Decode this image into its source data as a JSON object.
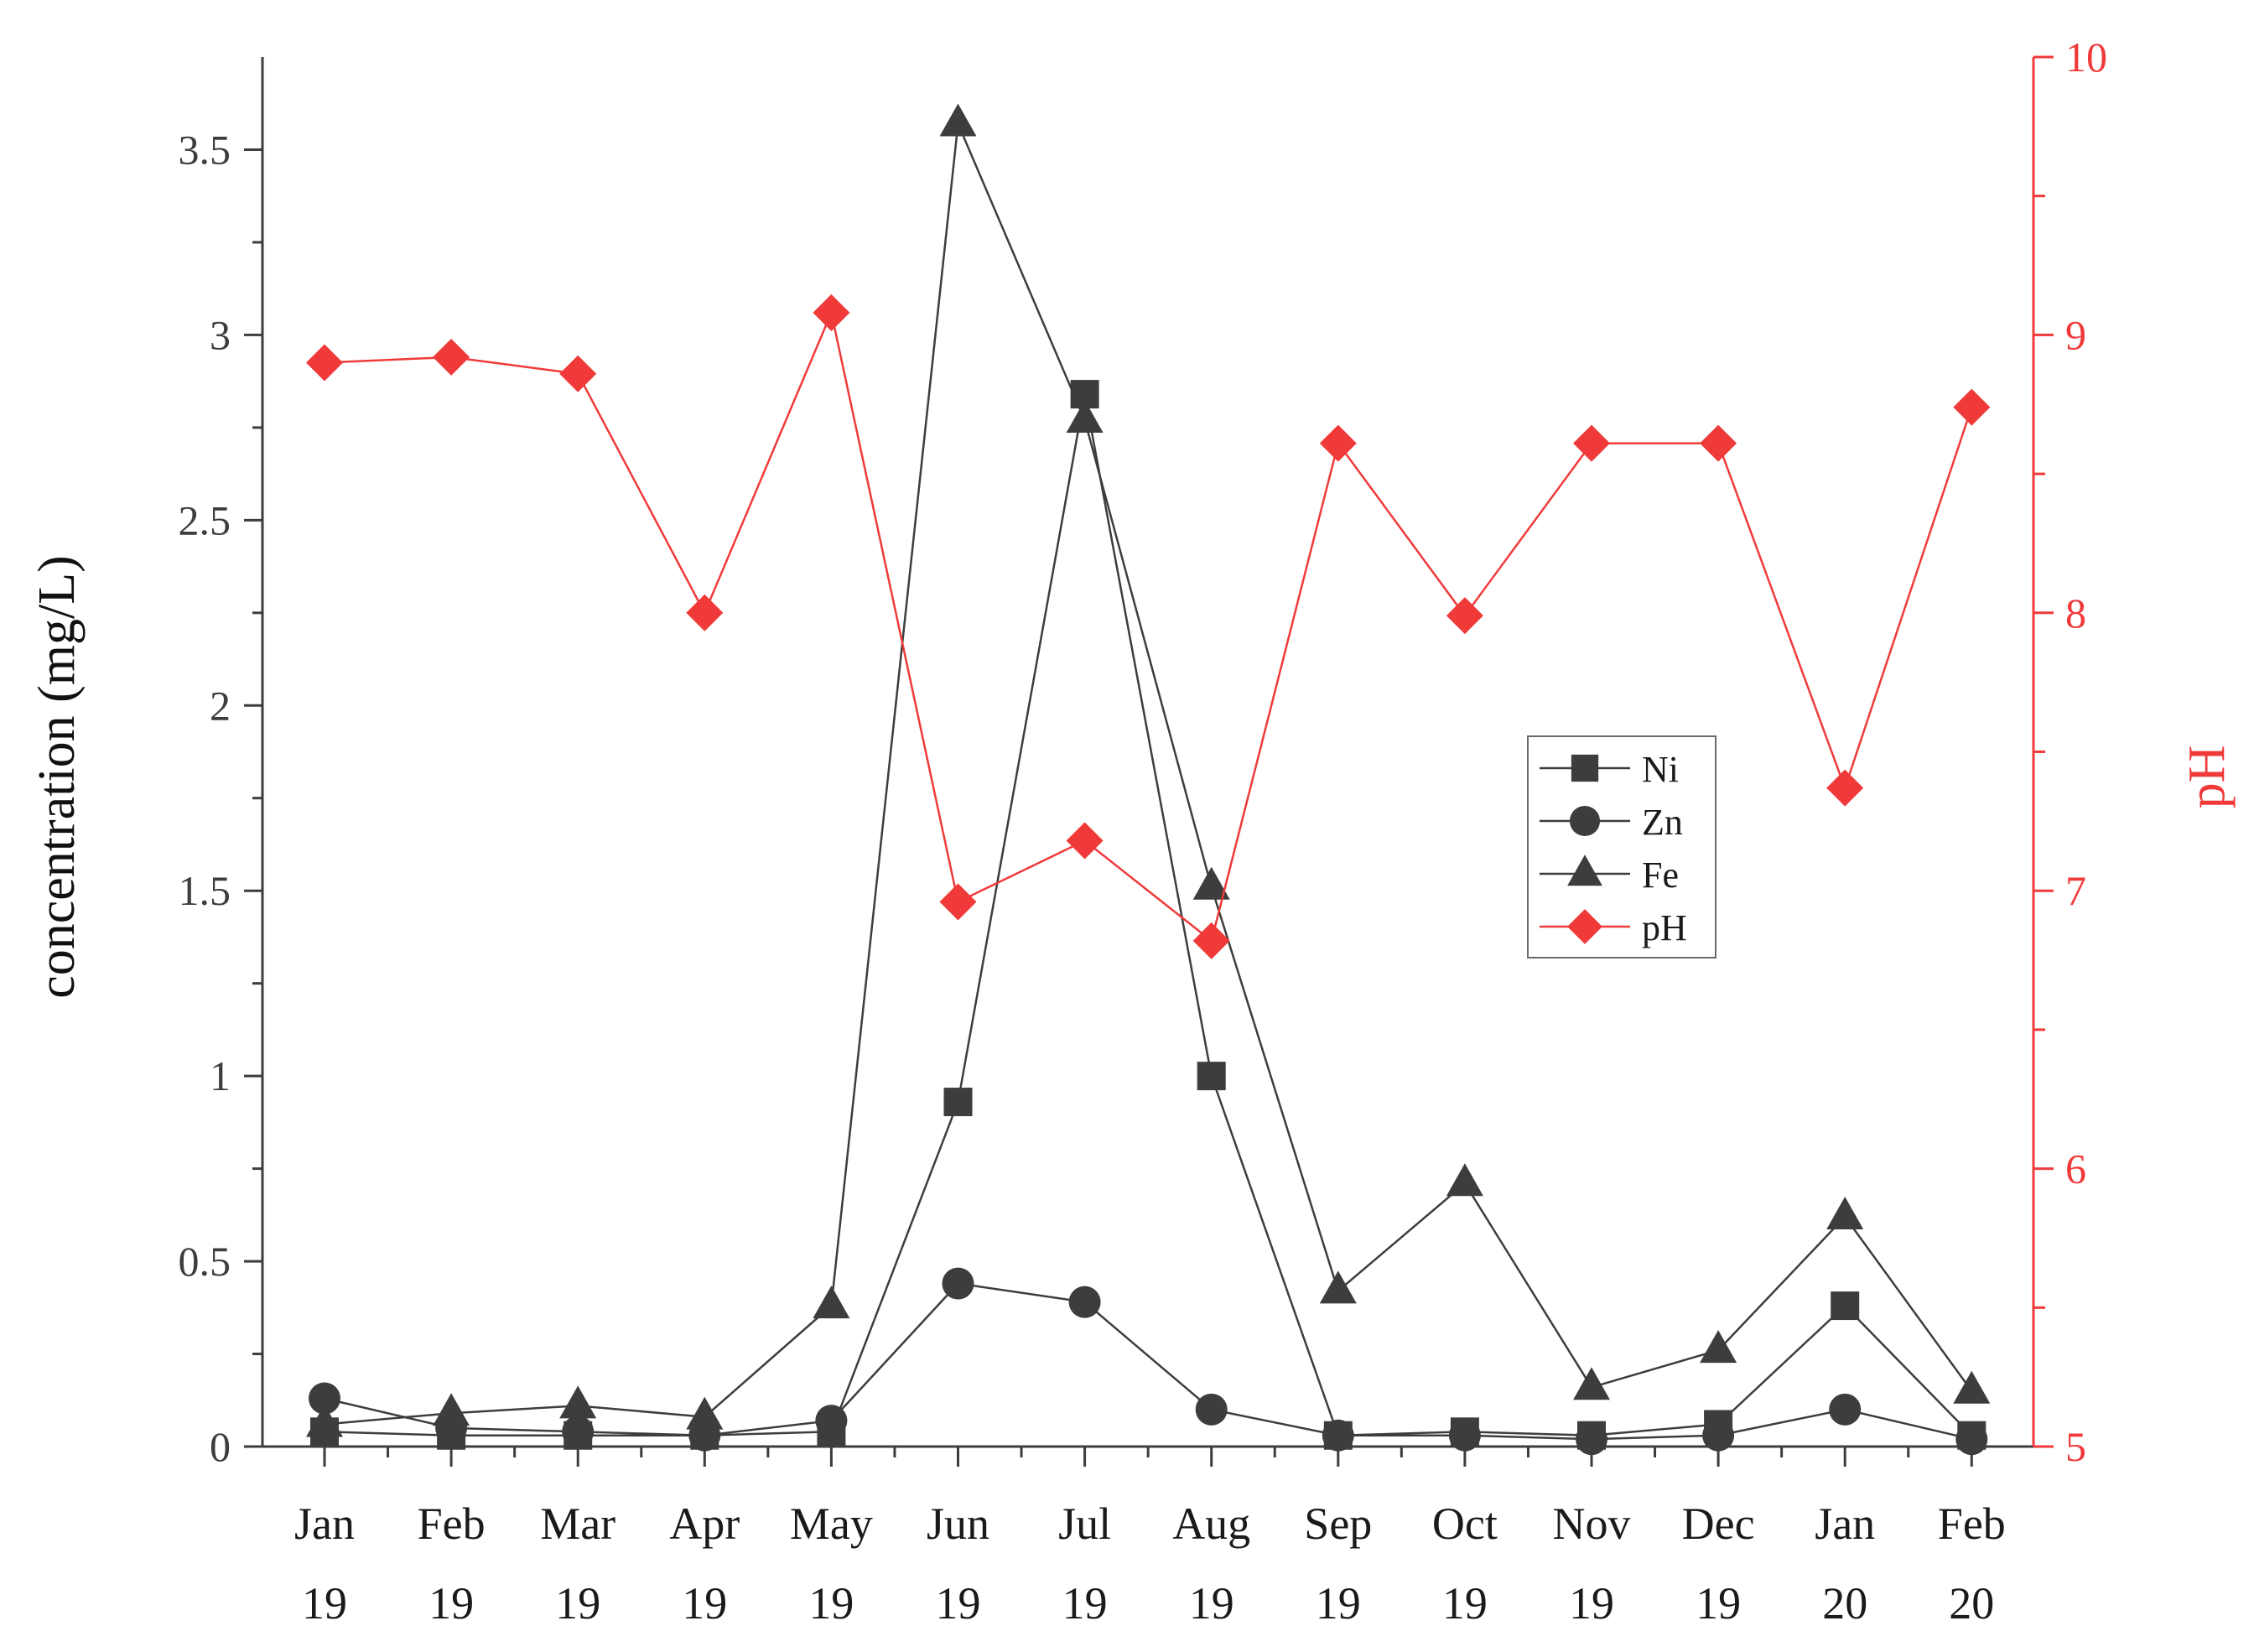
{
  "chart_data": {
    "type": "line",
    "categories": [
      "Jan 19",
      "Feb 19",
      "Mar 19",
      "Apr 19",
      "May 19",
      "Jun 19",
      "Jul 19",
      "Aug 19",
      "Sep 19",
      "Oct 19",
      "Nov 19",
      "Dec 19",
      "Jan 20",
      "Feb 20"
    ],
    "category_lines": [
      [
        "Jan",
        "19"
      ],
      [
        "Feb",
        "19"
      ],
      [
        "Mar",
        "19"
      ],
      [
        "Apr",
        "19"
      ],
      [
        "May",
        "19"
      ],
      [
        "Jun",
        "19"
      ],
      [
        "Jul",
        "19"
      ],
      [
        "Aug",
        "19"
      ],
      [
        "Sep",
        "19"
      ],
      [
        "Oct",
        "19"
      ],
      [
        "Nov",
        "19"
      ],
      [
        "Dec",
        "19"
      ],
      [
        "Jan",
        "20"
      ],
      [
        "Feb",
        "20"
      ]
    ],
    "ylabel": "concentration (mg/L)",
    "y2label": "pH",
    "ylim": [
      0,
      3.75
    ],
    "y2lim": [
      5,
      10
    ],
    "yticks": [
      0,
      0.5,
      1,
      1.5,
      2,
      2.5,
      3,
      3.5
    ],
    "ytick_labels": [
      "0",
      "0.5",
      "1",
      "1.5",
      "2",
      "2.5",
      "3",
      "3.5"
    ],
    "y2ticks": [
      5,
      6,
      7,
      8,
      9,
      10
    ],
    "y2tick_labels": [
      "5",
      "6",
      "7",
      "8",
      "9",
      "10"
    ],
    "grid": false,
    "legend_position": "center-right",
    "series": [
      {
        "name": "Ni",
        "axis": "left",
        "marker": "square",
        "color": "#3d3d3d",
        "values": [
          0.04,
          0.03,
          0.03,
          0.03,
          0.04,
          0.93,
          2.84,
          1.0,
          0.03,
          0.04,
          0.03,
          0.06,
          0.38,
          0.03
        ]
      },
      {
        "name": "Zn",
        "axis": "left",
        "marker": "circle",
        "color": "#3d3d3d",
        "values": [
          0.13,
          0.05,
          0.04,
          0.03,
          0.07,
          0.44,
          0.39,
          0.1,
          0.03,
          0.03,
          0.02,
          0.03,
          0.1,
          0.02
        ]
      },
      {
        "name": "Fe",
        "axis": "left",
        "marker": "triangle",
        "color": "#3d3d3d",
        "values": [
          0.06,
          0.09,
          0.11,
          0.08,
          0.38,
          3.57,
          2.77,
          1.51,
          0.42,
          0.71,
          0.16,
          0.26,
          0.62,
          0.15
        ]
      },
      {
        "name": "pH",
        "axis": "right",
        "marker": "diamond",
        "color": "#f03a3a",
        "values": [
          8.9,
          8.92,
          8.86,
          8.0,
          9.08,
          6.96,
          7.18,
          6.82,
          8.61,
          7.99,
          8.61,
          8.61,
          7.37,
          8.74
        ]
      }
    ]
  }
}
